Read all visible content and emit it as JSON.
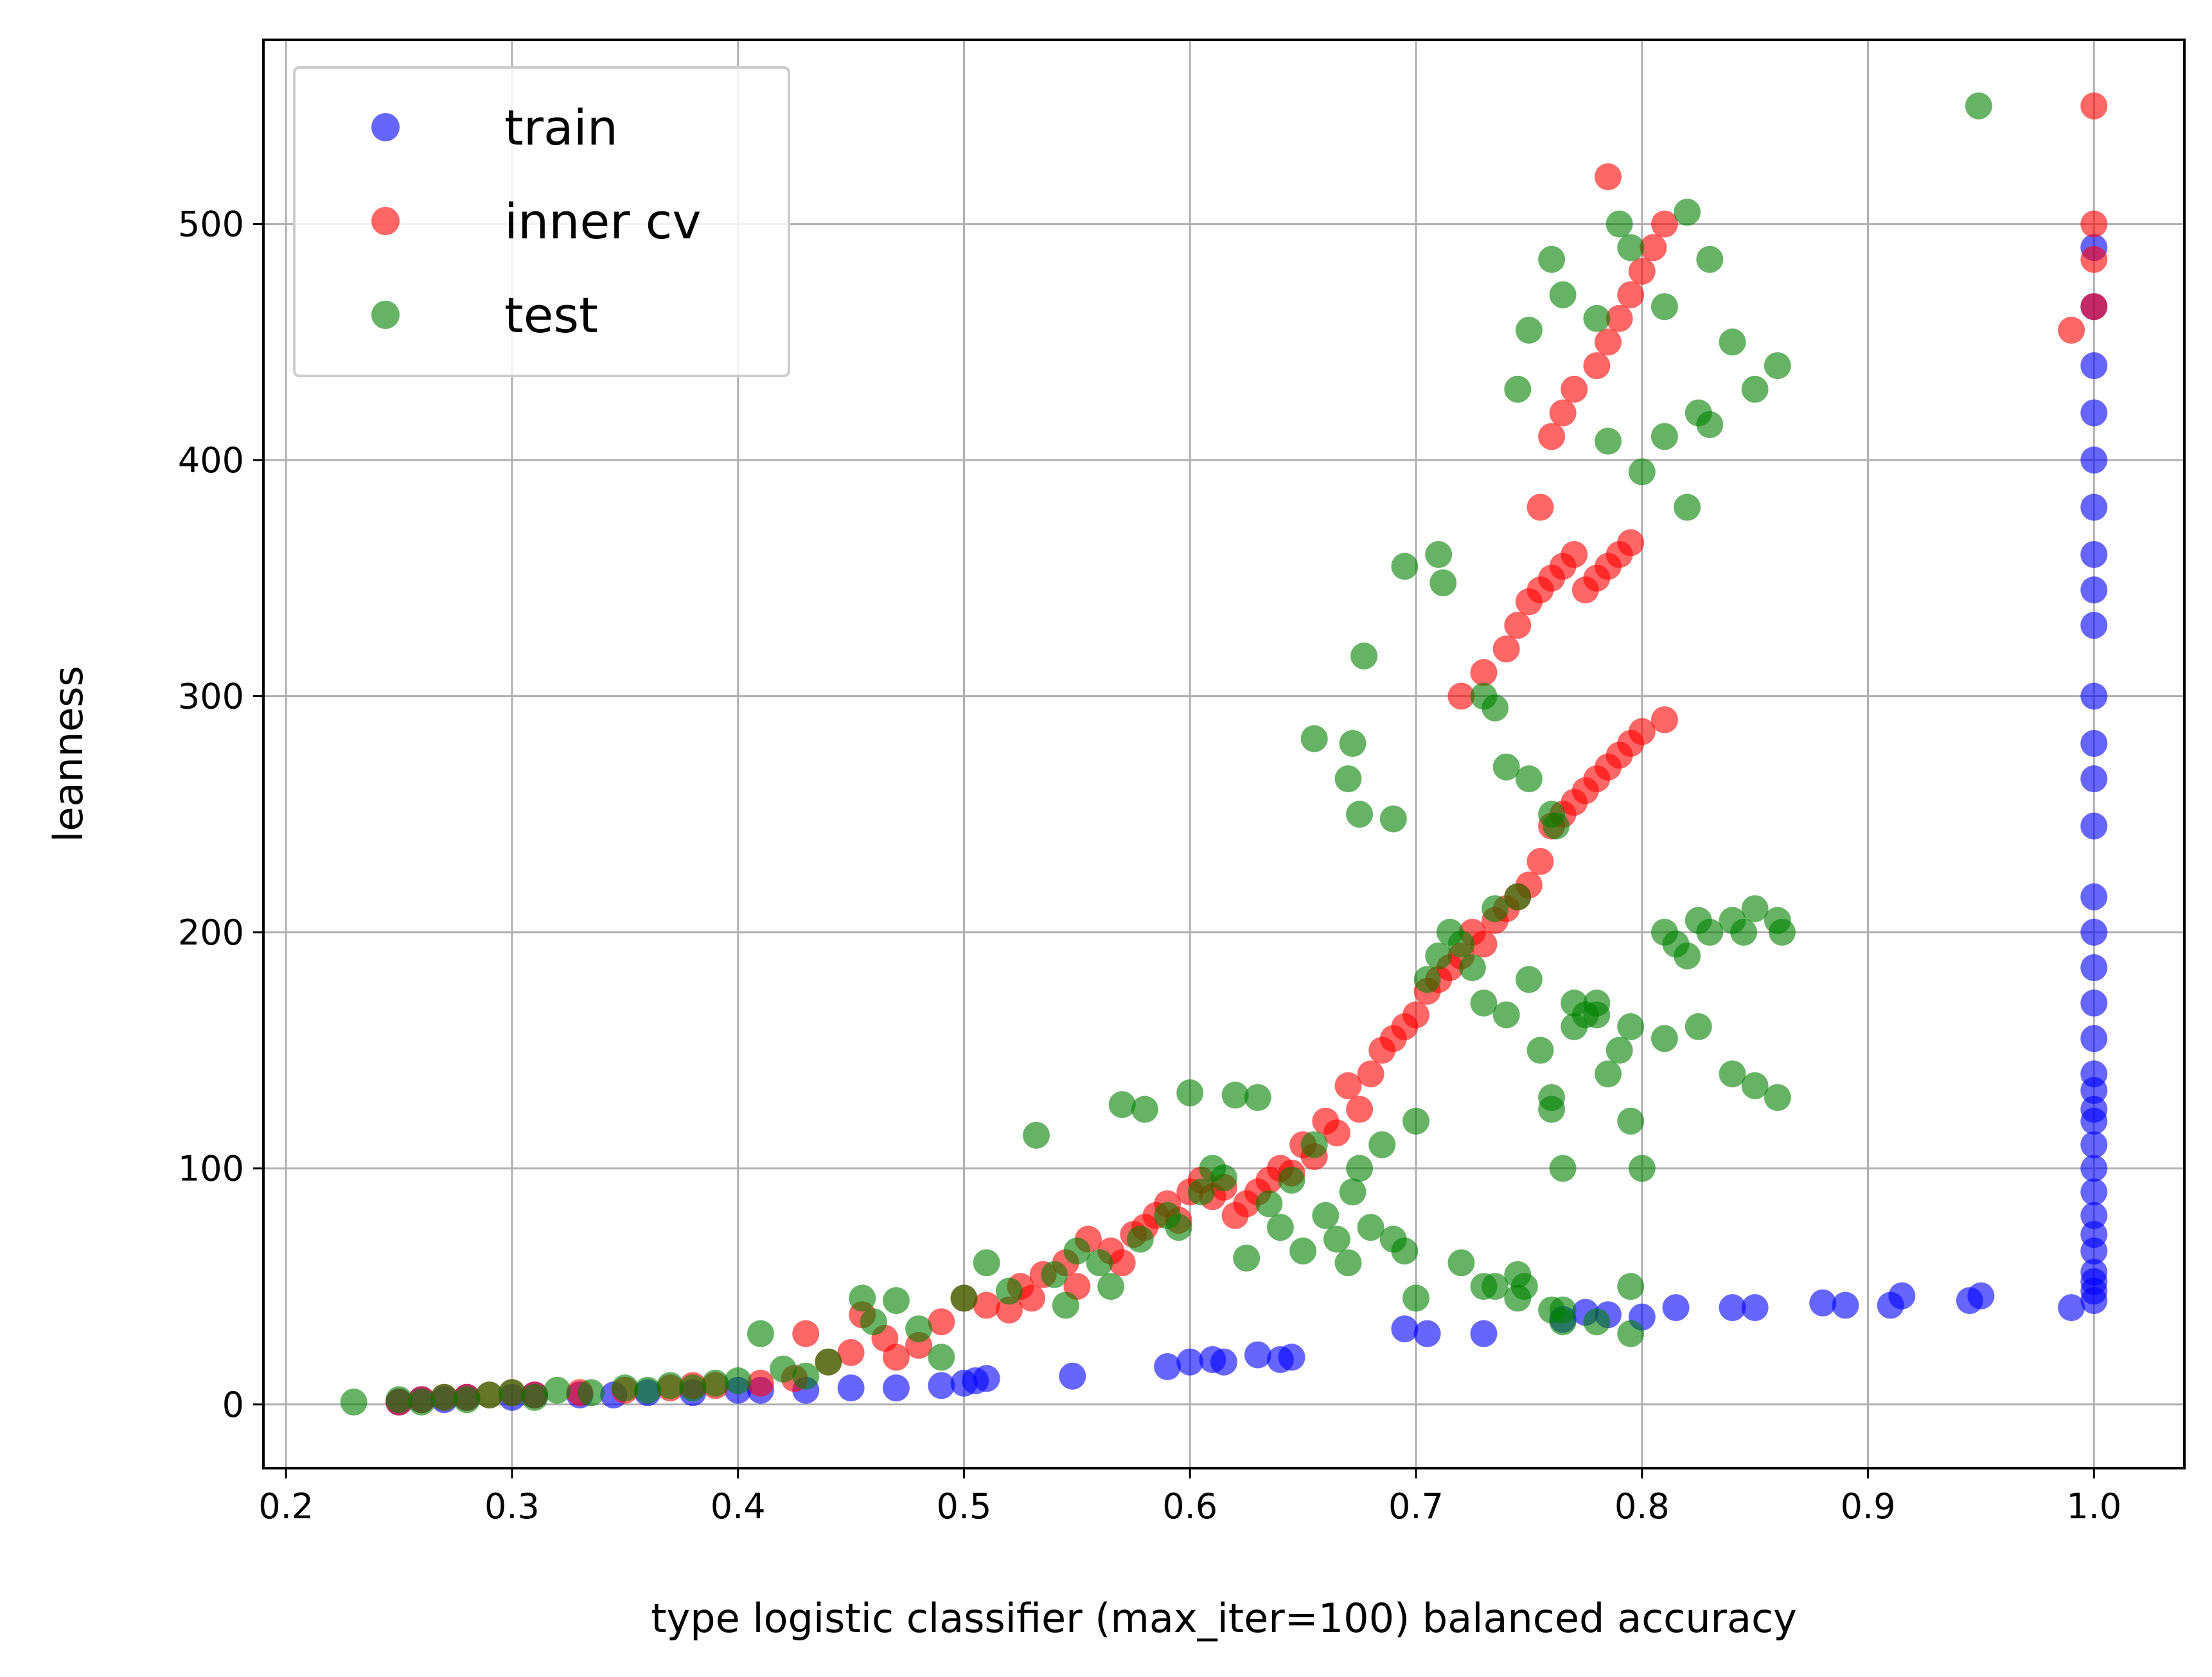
{
  "chart_data": {
    "type": "scatter",
    "xlabel": "type logistic classifier (max_iter=100) balanced accuracy",
    "ylabel": "leanness",
    "xlim": [
      0.19,
      1.04
    ],
    "ylim": [
      -27,
      578
    ],
    "grid": true,
    "legend_position": "top-left",
    "x_ticks": [
      0.2,
      0.3,
      0.4,
      0.5,
      0.6,
      0.7,
      0.8,
      0.9,
      1.0
    ],
    "x_tick_labels": [
      "0.2",
      "0.3",
      "0.4",
      "0.5",
      "0.6",
      "0.7",
      "0.8",
      "0.9",
      "1.0"
    ],
    "y_ticks": [
      0,
      100,
      200,
      300,
      400,
      500
    ],
    "y_tick_labels": [
      "0",
      "100",
      "200",
      "300",
      "400",
      "500"
    ],
    "series": [
      {
        "name": "train",
        "color": "#0000ff",
        "x": [
          0.25,
          0.26,
          0.27,
          0.28,
          0.3,
          0.31,
          0.33,
          0.345,
          0.36,
          0.38,
          0.4,
          0.41,
          0.43,
          0.45,
          0.47,
          0.49,
          0.5,
          0.505,
          0.51,
          0.548,
          0.59,
          0.6,
          0.61,
          0.615,
          0.63,
          0.64,
          0.645,
          0.695,
          0.705,
          0.73,
          0.765,
          0.775,
          0.785,
          0.8,
          0.815,
          0.84,
          0.85,
          0.88,
          0.89,
          0.91,
          0.915,
          0.945,
          0.95,
          0.99,
          1.0,
          1.0,
          1.0,
          1.0,
          1.0,
          1.0,
          1.0,
          1.0,
          1.0,
          1.0,
          1.0,
          1.0,
          1.0,
          1.0,
          1.0,
          1.0,
          1.0,
          1.0,
          1.0,
          1.0,
          1.0,
          1.0,
          1.0,
          1.0,
          1.0,
          1.0,
          1.0,
          1.0,
          1.0,
          1.0,
          1.0,
          1.0
        ],
        "y": [
          1,
          2,
          2,
          3,
          3,
          4,
          4,
          4,
          5,
          5,
          6,
          6,
          6,
          7,
          7,
          8,
          9,
          10,
          11,
          12,
          16,
          18,
          19,
          18,
          21,
          19,
          20,
          32,
          30,
          30,
          36,
          39,
          38,
          37,
          41,
          41,
          41,
          43,
          42,
          42,
          46,
          44,
          46,
          41,
          44,
          48,
          52,
          56,
          65,
          72,
          80,
          90,
          100,
          110,
          120,
          125,
          133,
          140,
          155,
          170,
          185,
          200,
          215,
          245,
          265,
          280,
          300,
          330,
          345,
          360,
          380,
          400,
          420,
          440,
          465,
          490
        ]
      },
      {
        "name": "inner cv",
        "color": "#ff0000",
        "x": [
          0.25,
          0.26,
          0.27,
          0.28,
          0.29,
          0.3,
          0.31,
          0.33,
          0.35,
          0.37,
          0.38,
          0.39,
          0.41,
          0.425,
          0.43,
          0.44,
          0.45,
          0.455,
          0.465,
          0.47,
          0.48,
          0.49,
          0.5,
          0.51,
          0.52,
          0.525,
          0.53,
          0.535,
          0.545,
          0.55,
          0.555,
          0.565,
          0.57,
          0.575,
          0.58,
          0.585,
          0.59,
          0.595,
          0.6,
          0.605,
          0.61,
          0.615,
          0.62,
          0.625,
          0.63,
          0.635,
          0.64,
          0.645,
          0.65,
          0.655,
          0.66,
          0.665,
          0.67,
          0.675,
          0.68,
          0.685,
          0.69,
          0.695,
          0.7,
          0.705,
          0.71,
          0.715,
          0.72,
          0.725,
          0.73,
          0.735,
          0.74,
          0.745,
          0.75,
          0.755,
          0.76,
          0.765,
          0.77,
          0.775,
          0.78,
          0.785,
          0.79,
          0.795,
          0.8,
          0.81,
          0.72,
          0.73,
          0.74,
          0.745,
          0.75,
          0.755,
          0.76,
          0.765,
          0.77,
          0.775,
          0.78,
          0.785,
          0.79,
          0.795,
          0.755,
          0.76,
          0.765,
          0.77,
          0.78,
          0.785,
          0.79,
          0.795,
          0.8,
          0.805,
          0.81,
          0.785,
          0.99,
          1.0,
          1.0,
          1.0,
          1.0
        ],
        "y": [
          1,
          2,
          3,
          3,
          4,
          5,
          4,
          5,
          6,
          7,
          8,
          8,
          9,
          11,
          30,
          18,
          22,
          38,
          28,
          20,
          25,
          35,
          45,
          42,
          40,
          50,
          45,
          55,
          60,
          50,
          70,
          65,
          60,
          72,
          75,
          80,
          85,
          78,
          90,
          95,
          88,
          92,
          80,
          85,
          90,
          95,
          100,
          98,
          110,
          105,
          120,
          115,
          135,
          125,
          140,
          150,
          155,
          160,
          165,
          175,
          180,
          185,
          190,
          200,
          195,
          205,
          210,
          215,
          220,
          230,
          245,
          250,
          255,
          260,
          265,
          270,
          275,
          280,
          285,
          290,
          300,
          310,
          320,
          330,
          340,
          345,
          350,
          355,
          360,
          345,
          350,
          355,
          360,
          365,
          380,
          410,
          420,
          430,
          440,
          450,
          460,
          470,
          480,
          490,
          500,
          520,
          455,
          465,
          485,
          500,
          550
        ]
      },
      {
        "name": "test",
        "color": "#008000",
        "x": [
          0.23,
          0.25,
          0.26,
          0.27,
          0.28,
          0.29,
          0.3,
          0.31,
          0.32,
          0.335,
          0.35,
          0.36,
          0.37,
          0.38,
          0.39,
          0.4,
          0.41,
          0.42,
          0.43,
          0.44,
          0.455,
          0.46,
          0.47,
          0.48,
          0.49,
          0.5,
          0.51,
          0.52,
          0.532,
          0.54,
          0.545,
          0.55,
          0.56,
          0.565,
          0.57,
          0.578,
          0.58,
          0.59,
          0.595,
          0.6,
          0.605,
          0.61,
          0.615,
          0.62,
          0.625,
          0.63,
          0.635,
          0.64,
          0.645,
          0.65,
          0.655,
          0.66,
          0.665,
          0.67,
          0.672,
          0.675,
          0.68,
          0.685,
          0.69,
          0.695,
          0.7,
          0.705,
          0.71,
          0.715,
          0.72,
          0.725,
          0.73,
          0.735,
          0.74,
          0.745,
          0.75,
          0.755,
          0.76,
          0.765,
          0.77,
          0.775,
          0.78,
          0.785,
          0.79,
          0.795,
          0.8,
          0.81,
          0.815,
          0.82,
          0.825,
          0.83,
          0.84,
          0.845,
          0.85,
          0.86,
          0.862,
          0.655,
          0.67,
          0.672,
          0.675,
          0.677,
          0.69,
          0.695,
          0.71,
          0.712,
          0.73,
          0.735,
          0.74,
          0.75,
          0.76,
          0.762,
          0.745,
          0.75,
          0.76,
          0.765,
          0.78,
          0.785,
          0.8,
          0.81,
          0.82,
          0.825,
          0.83,
          0.84,
          0.85,
          0.86,
          0.79,
          0.795,
          0.81,
          0.82,
          0.83,
          0.77,
          0.78,
          0.795,
          0.81,
          0.825,
          0.84,
          0.85,
          0.86,
          0.76,
          0.7,
          0.72,
          0.735,
          0.745,
          0.748,
          0.765,
          0.78,
          0.795,
          0.73,
          0.745,
          0.76,
          0.765,
          0.795,
          0.949
        ],
        "y": [
          1,
          2,
          1,
          3,
          2,
          4,
          5,
          3,
          6,
          5,
          7,
          6,
          8,
          7,
          9,
          10,
          30,
          15,
          12,
          18,
          45,
          35,
          44,
          32,
          20,
          45,
          60,
          48,
          114,
          55,
          42,
          65,
          60,
          50,
          127,
          70,
          125,
          80,
          75,
          132,
          90,
          100,
          96,
          131,
          62,
          130,
          85,
          75,
          95,
          65,
          110,
          80,
          70,
          60,
          90,
          100,
          75,
          110,
          70,
          65,
          120,
          180,
          190,
          200,
          195,
          185,
          170,
          210,
          165,
          215,
          180,
          150,
          130,
          100,
          160,
          165,
          170,
          140,
          150,
          120,
          100,
          200,
          195,
          190,
          205,
          200,
          205,
          200,
          210,
          205,
          200,
          282,
          265,
          280,
          250,
          317,
          248,
          355,
          360,
          348,
          300,
          295,
          270,
          265,
          250,
          245,
          430,
          455,
          485,
          470,
          460,
          408,
          395,
          410,
          380,
          420,
          415,
          450,
          430,
          440,
          500,
          490,
          465,
          505,
          485,
          170,
          165,
          160,
          155,
          160,
          140,
          135,
          130,
          125,
          45,
          60,
          50,
          55,
          50,
          40,
          35,
          30,
          50,
          45,
          40,
          35,
          50,
          550
        ]
      }
    ]
  }
}
